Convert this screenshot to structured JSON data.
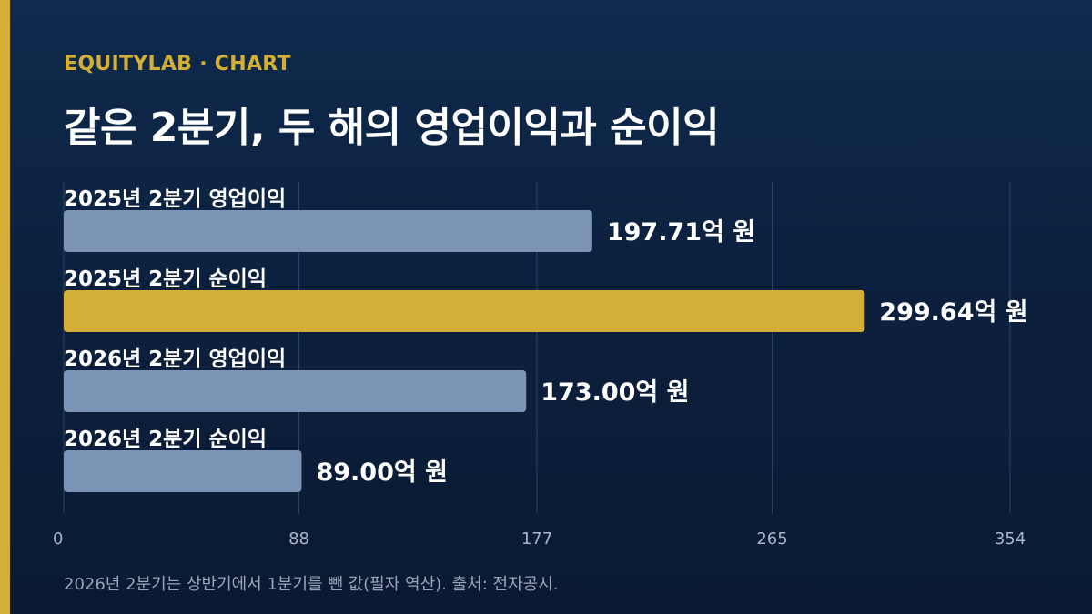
{
  "header": {
    "kicker": "EQUITYLAB · CHART",
    "title": "같은 2분기, 두 해의 영업이익과 순이익"
  },
  "chart_data": {
    "type": "bar",
    "orientation": "horizontal",
    "categories": [
      "2025년 2분기 영업이익",
      "2025년 2분기 순이익",
      "2026년 2분기 영업이익",
      "2026년 2분기 순이익"
    ],
    "values": [
      197.71,
      299.64,
      173.0,
      89.0
    ],
    "value_labels": [
      "197.71억 원",
      "299.64억 원",
      "173.00억 원",
      "89.00억 원"
    ],
    "highlight_index": 1,
    "xlim": [
      0,
      354
    ],
    "x_ticks": [
      0,
      88,
      177,
      265,
      354
    ],
    "grid": true,
    "colors": {
      "bar": "#7b93b5",
      "highlight": "#d4af37",
      "grid": "#2b4468"
    }
  },
  "footnote": "2026년 2분기는 상반기에서 1분기를 뺀 값(필자 역산). 출처: 전자공시."
}
